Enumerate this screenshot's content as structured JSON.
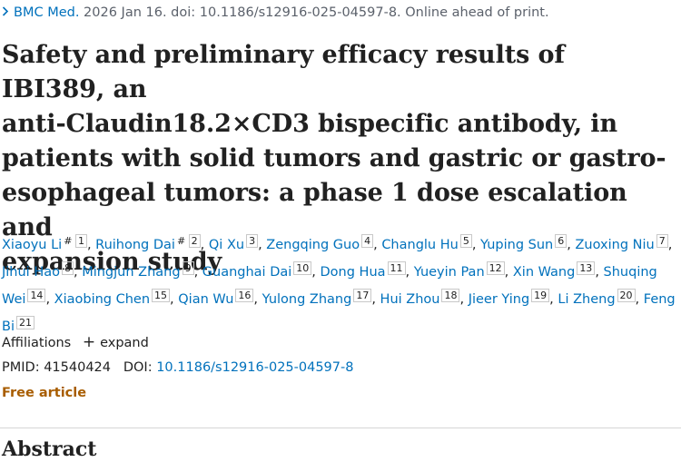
{
  "citation": {
    "journal": "BMC Med.",
    "details": "2026 Jan 16. doi: 10.1186/s12916-025-04597-8. Online ahead of print."
  },
  "title": {
    "line1": "Safety and preliminary efficacy results of IBI389, an",
    "line2": "anti-Claudin18.2×CD3 bispecific antibody, in",
    "line3": "patients with solid tumors and gastric or gastro-",
    "line4": "esophageal tumors: a phase 1 dose escalation and",
    "line5": "expansion study"
  },
  "authors": [
    {
      "name": "Xiaoyu Li",
      "mark": "#",
      "aff": "1"
    },
    {
      "name": "Ruihong Dai",
      "mark": "#",
      "aff": "2"
    },
    {
      "name": "Qi Xu",
      "aff": "3"
    },
    {
      "name": "Zengqing Guo",
      "aff": "4"
    },
    {
      "name": "Changlu Hu",
      "aff": "5"
    },
    {
      "name": "Yuping Sun",
      "aff": "6"
    },
    {
      "name": "Zuoxing Niu",
      "aff": "7"
    },
    {
      "name": "Jihui Hao",
      "aff": "8"
    },
    {
      "name": "Mingjun Zhang",
      "aff": "9"
    },
    {
      "name": "Guanghai Dai",
      "aff": "10"
    },
    {
      "name": "Dong Hua",
      "aff": "11"
    },
    {
      "name": "Yueyin Pan",
      "aff": "12"
    },
    {
      "name": "Xin Wang",
      "aff": "13"
    },
    {
      "name": "Shuqing Wei",
      "aff": "14"
    },
    {
      "name": "Xiaobing Chen",
      "aff": "15"
    },
    {
      "name": "Qian Wu",
      "aff": "16"
    },
    {
      "name": "Yulong Zhang",
      "aff": "17"
    },
    {
      "name": "Hui Zhou",
      "aff": "18"
    },
    {
      "name": "Jieer Ying",
      "aff": "19"
    },
    {
      "name": "Li Zheng",
      "aff": "20"
    },
    {
      "name": "Feng Bi",
      "aff": "21"
    }
  ],
  "affiliations": {
    "label": "Affiliations",
    "expand_label": "expand"
  },
  "ids": {
    "pmid_label": "PMID:",
    "pmid": "41540424",
    "doi_label": "DOI:",
    "doi": "10.1186/s12916-025-04597-8"
  },
  "free_article": "Free article",
  "abstract_heading": "Abstract",
  "colors": {
    "link": "#0071bc",
    "free_article": "#a85d00",
    "text": "#212121"
  }
}
